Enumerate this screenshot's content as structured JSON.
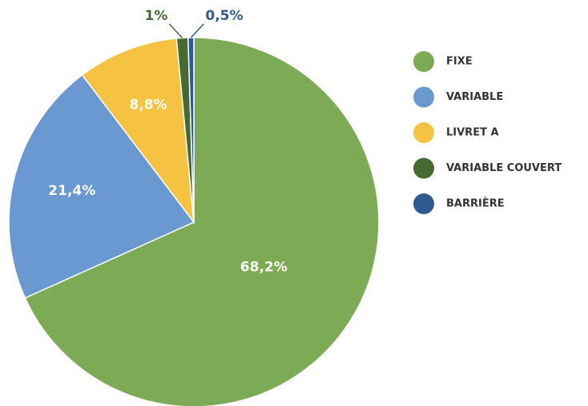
{
  "chart_data": {
    "type": "pie",
    "categories": [
      "FIXE",
      "VARIABLE",
      "LIVRET A",
      "VARIABLE COUVERT",
      "BARRIÈRE"
    ],
    "values": [
      68.2,
      21.4,
      8.8,
      1,
      0.5
    ],
    "value_labels": [
      "68,2%",
      "21,4%",
      "8,8%",
      "1%",
      "0,5%"
    ],
    "colors": [
      "#7dab55",
      "#6a98d0",
      "#f5c242",
      "#456b33",
      "#2e5a8f"
    ],
    "legend": "right"
  }
}
